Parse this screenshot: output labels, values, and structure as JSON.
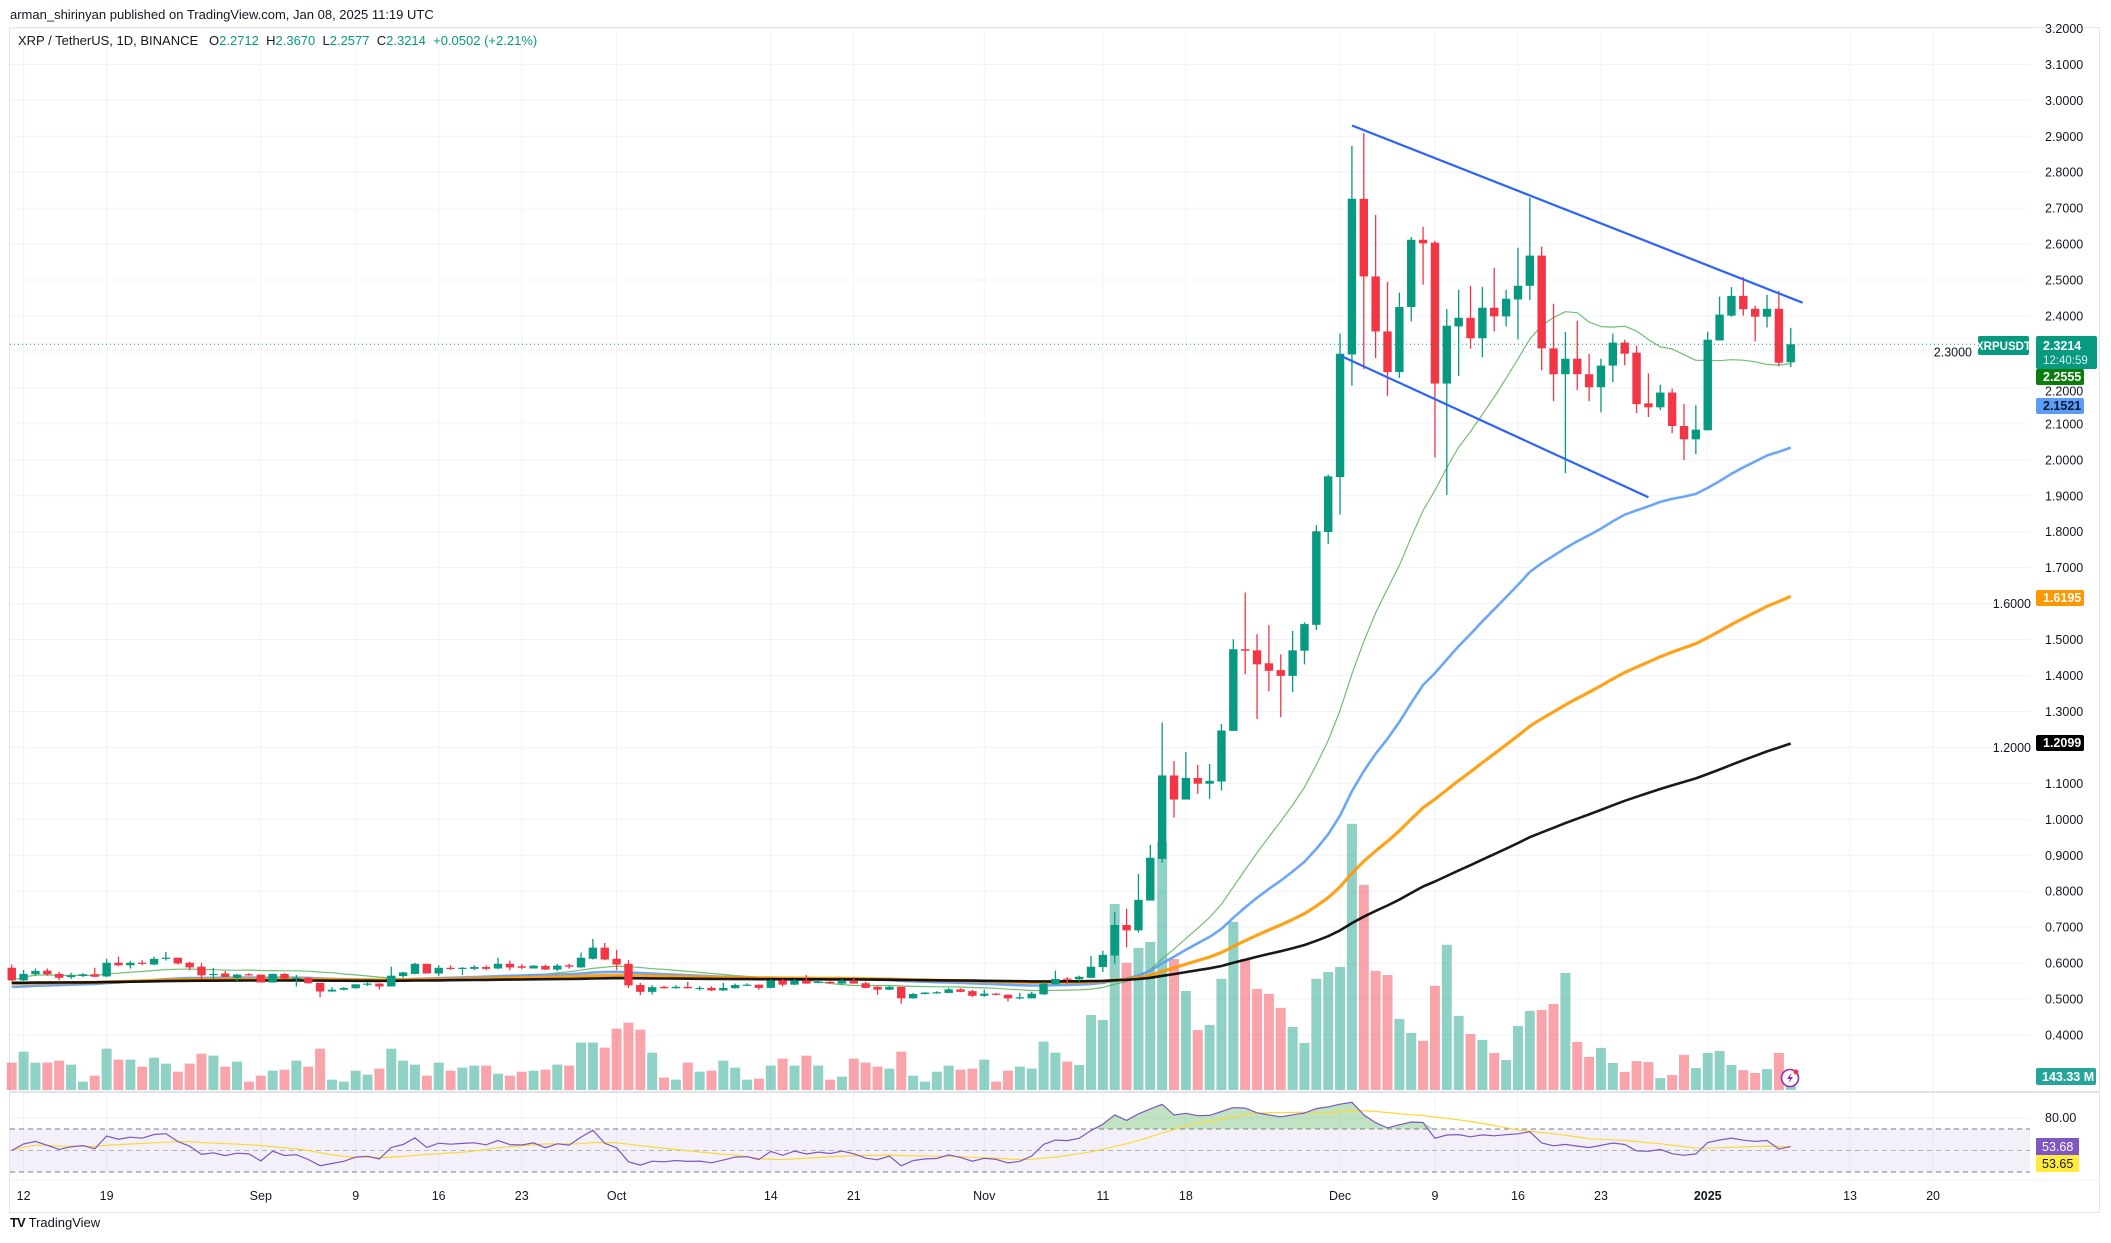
{
  "header": {
    "publisher_line": "arman_shirinyan published on TradingView.com, Jan 08, 2025 11:19 UTC"
  },
  "legend": {
    "symbol": "XRP / TetherUS, 1D, BINANCE",
    "o_label": "O",
    "o": "2.2712",
    "h_label": "H",
    "h": "2.3670",
    "l_label": "L",
    "l": "2.2577",
    "c_label": "C",
    "c": "2.3214",
    "change": "+0.0502 (+2.21%)"
  },
  "badges": {
    "symbol": "XRPUSDT",
    "last_price": "2.3214",
    "countdown": "12:40:59",
    "ma_green": "2.2555",
    "ma_blue": "2.1521",
    "ma_orange": "1.6195",
    "ma_black": "1.2099",
    "volume": "143.33 M",
    "rsi": "53.68",
    "rsi_ma": "53.65"
  },
  "rsi_axis": {
    "label": "80.00"
  },
  "footer": {
    "logo_mark": "TV",
    "logo_text": "TradingView"
  },
  "icons": {
    "alert": "lightning-icon"
  },
  "colors": {
    "up": "#089981",
    "down": "#f23645",
    "vol_up": "rgba(8,153,129,0.45)",
    "vol_down": "rgba(242,54,69,0.45)",
    "ma_green": "#4caf50",
    "ma_blue": "#5b9cf6",
    "ma_orange": "#ff9800",
    "ma_black": "#000000",
    "trendline": "#2962ff",
    "rsi": "#7e57c2",
    "rsi_ma": "#fdd835",
    "grid": "#f0f3fa"
  },
  "chart_data": {
    "type": "candlestick",
    "title": "XRP / TetherUS, 1D, BINANCE",
    "start_date": "2024-08-11",
    "ylim": [
      0.4,
      3.2
    ],
    "y_ticks": [
      "3.2000",
      "3.1000",
      "3.0000",
      "2.9000",
      "2.8000",
      "2.7000",
      "2.6000",
      "2.5000",
      "2.4000",
      "2.3000",
      "2.2000",
      "2.1000",
      "2.0000",
      "1.9000",
      "1.8000",
      "1.7000",
      "1.6000",
      "1.5000",
      "1.4000",
      "1.3000",
      "1.2000",
      "1.1000",
      "1.0000",
      "0.9000",
      "0.8000",
      "0.7000",
      "0.6000",
      "0.5000",
      "0.4000"
    ],
    "x_ticks": [
      {
        "label": "12",
        "index": 1
      },
      {
        "label": "19",
        "index": 8
      },
      {
        "label": "Sep",
        "index": 21
      },
      {
        "label": "9",
        "index": 29
      },
      {
        "label": "16",
        "index": 36
      },
      {
        "label": "23",
        "index": 43
      },
      {
        "label": "Oct",
        "index": 51
      },
      {
        "label": "14",
        "index": 64
      },
      {
        "label": "21",
        "index": 71
      },
      {
        "label": "Nov",
        "index": 82
      },
      {
        "label": "11",
        "index": 92
      },
      {
        "label": "18",
        "index": 99
      },
      {
        "label": "Dec",
        "index": 112
      },
      {
        "label": "9",
        "index": 120
      },
      {
        "label": "16",
        "index": 127
      },
      {
        "label": "23",
        "index": 134
      },
      {
        "label": "2025",
        "index": 143
      },
      {
        "label": "13",
        "index": 155
      },
      {
        "label": "20",
        "index": 162
      }
    ],
    "candle_fields": [
      "open",
      "high",
      "low",
      "close",
      "volume_millions"
    ],
    "candles": [
      [
        0.587,
        0.596,
        0.55,
        0.552,
        302
      ],
      [
        0.552,
        0.581,
        0.55,
        0.57,
        423
      ],
      [
        0.569,
        0.585,
        0.565,
        0.578,
        302
      ],
      [
        0.579,
        0.585,
        0.565,
        0.569,
        302
      ],
      [
        0.57,
        0.576,
        0.552,
        0.559,
        324
      ],
      [
        0.561,
        0.573,
        0.556,
        0.566,
        280
      ],
      [
        0.564,
        0.572,
        0.561,
        0.569,
        92
      ],
      [
        0.569,
        0.587,
        0.561,
        0.562,
        158
      ],
      [
        0.563,
        0.612,
        0.561,
        0.601,
        456
      ],
      [
        0.601,
        0.618,
        0.591,
        0.594,
        335
      ],
      [
        0.594,
        0.606,
        0.585,
        0.601,
        335
      ],
      [
        0.601,
        0.608,
        0.594,
        0.599,
        258
      ],
      [
        0.596,
        0.618,
        0.594,
        0.612,
        357
      ],
      [
        0.612,
        0.631,
        0.607,
        0.615,
        291
      ],
      [
        0.615,
        0.615,
        0.596,
        0.599,
        202
      ],
      [
        0.601,
        0.604,
        0.58,
        0.588,
        291
      ],
      [
        0.59,
        0.601,
        0.555,
        0.566,
        401
      ],
      [
        0.569,
        0.587,
        0.556,
        0.57,
        379
      ],
      [
        0.571,
        0.578,
        0.561,
        0.562,
        258
      ],
      [
        0.559,
        0.57,
        0.548,
        0.568,
        313
      ],
      [
        0.569,
        0.572,
        0.565,
        0.566,
        92
      ],
      [
        0.568,
        0.568,
        0.546,
        0.546,
        158
      ],
      [
        0.546,
        0.57,
        0.546,
        0.57,
        213
      ],
      [
        0.57,
        0.572,
        0.555,
        0.557,
        224
      ],
      [
        0.557,
        0.567,
        0.535,
        0.559,
        324
      ],
      [
        0.559,
        0.561,
        0.543,
        0.544,
        258
      ],
      [
        0.545,
        0.545,
        0.505,
        0.521,
        456
      ],
      [
        0.521,
        0.533,
        0.52,
        0.526,
        114
      ],
      [
        0.526,
        0.533,
        0.524,
        0.531,
        92
      ],
      [
        0.53,
        0.541,
        0.529,
        0.541,
        213
      ],
      [
        0.541,
        0.547,
        0.536,
        0.543,
        169
      ],
      [
        0.543,
        0.544,
        0.527,
        0.535,
        236
      ],
      [
        0.535,
        0.59,
        0.535,
        0.565,
        456
      ],
      [
        0.564,
        0.576,
        0.559,
        0.574,
        324
      ],
      [
        0.57,
        0.601,
        0.569,
        0.598,
        280
      ],
      [
        0.598,
        0.598,
        0.571,
        0.571,
        158
      ],
      [
        0.571,
        0.594,
        0.564,
        0.587,
        302
      ],
      [
        0.587,
        0.594,
        0.581,
        0.584,
        213
      ],
      [
        0.584,
        0.589,
        0.567,
        0.587,
        247
      ],
      [
        0.584,
        0.594,
        0.581,
        0.589,
        269
      ],
      [
        0.589,
        0.594,
        0.58,
        0.584,
        269
      ],
      [
        0.585,
        0.615,
        0.583,
        0.598,
        180
      ],
      [
        0.598,
        0.607,
        0.58,
        0.588,
        158
      ],
      [
        0.591,
        0.597,
        0.583,
        0.587,
        202
      ],
      [
        0.585,
        0.594,
        0.585,
        0.593,
        213
      ],
      [
        0.592,
        0.596,
        0.581,
        0.582,
        224
      ],
      [
        0.582,
        0.598,
        0.578,
        0.593,
        280
      ],
      [
        0.594,
        0.598,
        0.585,
        0.59,
        269
      ],
      [
        0.588,
        0.629,
        0.587,
        0.615,
        523
      ],
      [
        0.612,
        0.667,
        0.61,
        0.643,
        523
      ],
      [
        0.643,
        0.656,
        0.608,
        0.61,
        467
      ],
      [
        0.612,
        0.637,
        0.581,
        0.596,
        677
      ],
      [
        0.598,
        0.609,
        0.53,
        0.538,
        743
      ],
      [
        0.539,
        0.545,
        0.511,
        0.52,
        666
      ],
      [
        0.52,
        0.539,
        0.513,
        0.533,
        412
      ],
      [
        0.534,
        0.537,
        0.529,
        0.53,
        136
      ],
      [
        0.53,
        0.539,
        0.529,
        0.534,
        114
      ],
      [
        0.534,
        0.548,
        0.529,
        0.53,
        302
      ],
      [
        0.53,
        0.536,
        0.524,
        0.531,
        202
      ],
      [
        0.531,
        0.536,
        0.522,
        0.524,
        213
      ],
      [
        0.524,
        0.545,
        0.522,
        0.531,
        324
      ],
      [
        0.53,
        0.543,
        0.529,
        0.539,
        247
      ],
      [
        0.538,
        0.544,
        0.537,
        0.54,
        114
      ],
      [
        0.54,
        0.54,
        0.526,
        0.531,
        125
      ],
      [
        0.531,
        0.555,
        0.53,
        0.552,
        269
      ],
      [
        0.552,
        0.556,
        0.535,
        0.54,
        346
      ],
      [
        0.54,
        0.556,
        0.539,
        0.552,
        269
      ],
      [
        0.552,
        0.567,
        0.543,
        0.543,
        379
      ],
      [
        0.546,
        0.552,
        0.544,
        0.548,
        269
      ],
      [
        0.548,
        0.55,
        0.544,
        0.544,
        114
      ],
      [
        0.543,
        0.555,
        0.539,
        0.55,
        147
      ],
      [
        0.55,
        0.562,
        0.543,
        0.543,
        346
      ],
      [
        0.544,
        0.548,
        0.53,
        0.531,
        302
      ],
      [
        0.534,
        0.536,
        0.512,
        0.526,
        258
      ],
      [
        0.526,
        0.536,
        0.525,
        0.534,
        236
      ],
      [
        0.534,
        0.534,
        0.487,
        0.502,
        423
      ],
      [
        0.502,
        0.517,
        0.501,
        0.514,
        158
      ],
      [
        0.514,
        0.519,
        0.513,
        0.518,
        92
      ],
      [
        0.518,
        0.522,
        0.515,
        0.519,
        202
      ],
      [
        0.517,
        0.531,
        0.518,
        0.527,
        269
      ],
      [
        0.527,
        0.53,
        0.519,
        0.52,
        224
      ],
      [
        0.522,
        0.526,
        0.505,
        0.509,
        236
      ],
      [
        0.509,
        0.526,
        0.506,
        0.515,
        335
      ],
      [
        0.515,
        0.517,
        0.51,
        0.512,
        92
      ],
      [
        0.512,
        0.513,
        0.493,
        0.502,
        213
      ],
      [
        0.504,
        0.517,
        0.499,
        0.505,
        258
      ],
      [
        0.502,
        0.52,
        0.502,
        0.515,
        236
      ],
      [
        0.513,
        0.548,
        0.512,
        0.543,
        534
      ],
      [
        0.541,
        0.579,
        0.541,
        0.556,
        412
      ],
      [
        0.557,
        0.561,
        0.543,
        0.555,
        313
      ],
      [
        0.555,
        0.565,
        0.548,
        0.562,
        276
      ],
      [
        0.559,
        0.62,
        0.559,
        0.59,
        827
      ],
      [
        0.589,
        0.635,
        0.575,
        0.623,
        772
      ],
      [
        0.621,
        0.743,
        0.599,
        0.706,
        2052
      ],
      [
        0.706,
        0.751,
        0.644,
        0.691,
        1402
      ],
      [
        0.691,
        0.848,
        0.685,
        0.776,
        1568
      ],
      [
        0.774,
        0.929,
        0.774,
        0.893,
        1633
      ],
      [
        0.89,
        1.269,
        0.879,
        1.122,
        2736
      ],
      [
        1.122,
        1.162,
        1.005,
        1.055,
        1445
      ],
      [
        1.055,
        1.187,
        1.055,
        1.115,
        1092
      ],
      [
        1.115,
        1.151,
        1.071,
        1.099,
        661
      ],
      [
        1.099,
        1.154,
        1.057,
        1.107,
        718
      ],
      [
        1.105,
        1.265,
        1.08,
        1.247,
        1226
      ],
      [
        1.246,
        1.501,
        1.246,
        1.473,
        1855
      ],
      [
        1.473,
        1.631,
        1.404,
        1.469,
        1445
      ],
      [
        1.47,
        1.515,
        1.279,
        1.431,
        1114
      ],
      [
        1.434,
        1.54,
        1.356,
        1.413,
        1060
      ],
      [
        1.415,
        1.459,
        1.284,
        1.399,
        906
      ],
      [
        1.399,
        1.524,
        1.354,
        1.47,
        695
      ],
      [
        1.469,
        1.548,
        1.431,
        1.543,
        519
      ],
      [
        1.541,
        1.818,
        1.527,
        1.801,
        1226
      ],
      [
        1.799,
        1.959,
        1.766,
        1.954,
        1302
      ],
      [
        1.952,
        2.351,
        1.848,
        2.295,
        1357
      ],
      [
        2.293,
        2.873,
        2.206,
        2.726,
        2936
      ],
      [
        2.726,
        2.909,
        2.252,
        2.51,
        2263
      ],
      [
        2.51,
        2.681,
        2.283,
        2.357,
        1314
      ],
      [
        2.357,
        2.495,
        2.178,
        2.244,
        1268
      ],
      [
        2.244,
        2.465,
        2.228,
        2.425,
        784
      ],
      [
        2.425,
        2.62,
        2.385,
        2.612,
        630
      ],
      [
        2.612,
        2.648,
        2.487,
        2.602,
        542
      ],
      [
        2.604,
        2.609,
        2.006,
        2.212,
        1149
      ],
      [
        2.212,
        2.419,
        1.902,
        2.373,
        1602
      ],
      [
        2.371,
        2.473,
        2.233,
        2.395,
        818
      ],
      [
        2.395,
        2.484,
        2.309,
        2.338,
        618
      ],
      [
        2.338,
        2.481,
        2.285,
        2.423,
        553
      ],
      [
        2.423,
        2.534,
        2.357,
        2.399,
        408
      ],
      [
        2.399,
        2.473,
        2.371,
        2.448,
        331
      ],
      [
        2.446,
        2.59,
        2.335,
        2.484,
        707
      ],
      [
        2.484,
        2.729,
        2.444,
        2.568,
        872
      ],
      [
        2.568,
        2.593,
        2.249,
        2.31,
        884
      ],
      [
        2.31,
        2.434,
        2.163,
        2.238,
        949
      ],
      [
        2.238,
        2.356,
        1.963,
        2.281,
        1291
      ],
      [
        2.281,
        2.387,
        2.194,
        2.238,
        530
      ],
      [
        2.238,
        2.295,
        2.163,
        2.202,
        365
      ],
      [
        2.202,
        2.281,
        2.132,
        2.262,
        465
      ],
      [
        2.262,
        2.351,
        2.216,
        2.326,
        299
      ],
      [
        2.326,
        2.334,
        2.263,
        2.295,
        200
      ],
      [
        2.298,
        2.318,
        2.13,
        2.155,
        319
      ],
      [
        2.157,
        2.24,
        2.119,
        2.146,
        308
      ],
      [
        2.146,
        2.209,
        2.138,
        2.187,
        131
      ],
      [
        2.187,
        2.198,
        2.074,
        2.094,
        165
      ],
      [
        2.094,
        2.155,
        1.999,
        2.057,
        388
      ],
      [
        2.057,
        2.152,
        2.016,
        2.084,
        242
      ],
      [
        2.082,
        2.356,
        2.082,
        2.334,
        408
      ],
      [
        2.332,
        2.454,
        2.332,
        2.404,
        430
      ],
      [
        2.401,
        2.481,
        2.398,
        2.456,
        276
      ],
      [
        2.456,
        2.508,
        2.401,
        2.419,
        219
      ],
      [
        2.42,
        2.429,
        2.329,
        2.398,
        188
      ],
      [
        2.398,
        2.459,
        2.368,
        2.42,
        231
      ],
      [
        2.42,
        2.47,
        2.26,
        2.27,
        408
      ],
      [
        2.2712,
        2.367,
        2.2577,
        2.3214,
        143.33
      ]
    ],
    "moving_averages": [
      {
        "name": "ma-green",
        "kind": "sma",
        "period": 20,
        "color_key": "ma_green",
        "last": 2.2555
      },
      {
        "name": "ma-blue",
        "kind": "ema",
        "period": 50,
        "seed": 0.533,
        "color_key": "ma_blue",
        "last": 2.1521
      },
      {
        "name": "ma-orange",
        "kind": "ema",
        "period": 100,
        "seed": 0.543,
        "color_key": "ma_orange",
        "last": 1.6195
      },
      {
        "name": "ma-black",
        "kind": "ema",
        "period": 200,
        "seed": 0.545,
        "color_key": "ma_black",
        "last": 1.2099
      }
    ],
    "trendlines": [
      {
        "name": "upper-trendline",
        "from": {
          "date": "2024-12-02",
          "price": 2.93
        },
        "to": {
          "date": "2025-01-09",
          "price": 2.437
        }
      },
      {
        "name": "lower-trendline",
        "from": {
          "date": "2024-12-01",
          "price": 2.29
        },
        "to": {
          "date": "2024-12-27",
          "price": 1.896
        }
      }
    ],
    "last_price": 2.3214,
    "rsi": {
      "period": 14,
      "ma_period": 14,
      "levels": [
        70,
        50,
        30
      ],
      "last": 53.68,
      "ma_last": 53.65
    }
  }
}
